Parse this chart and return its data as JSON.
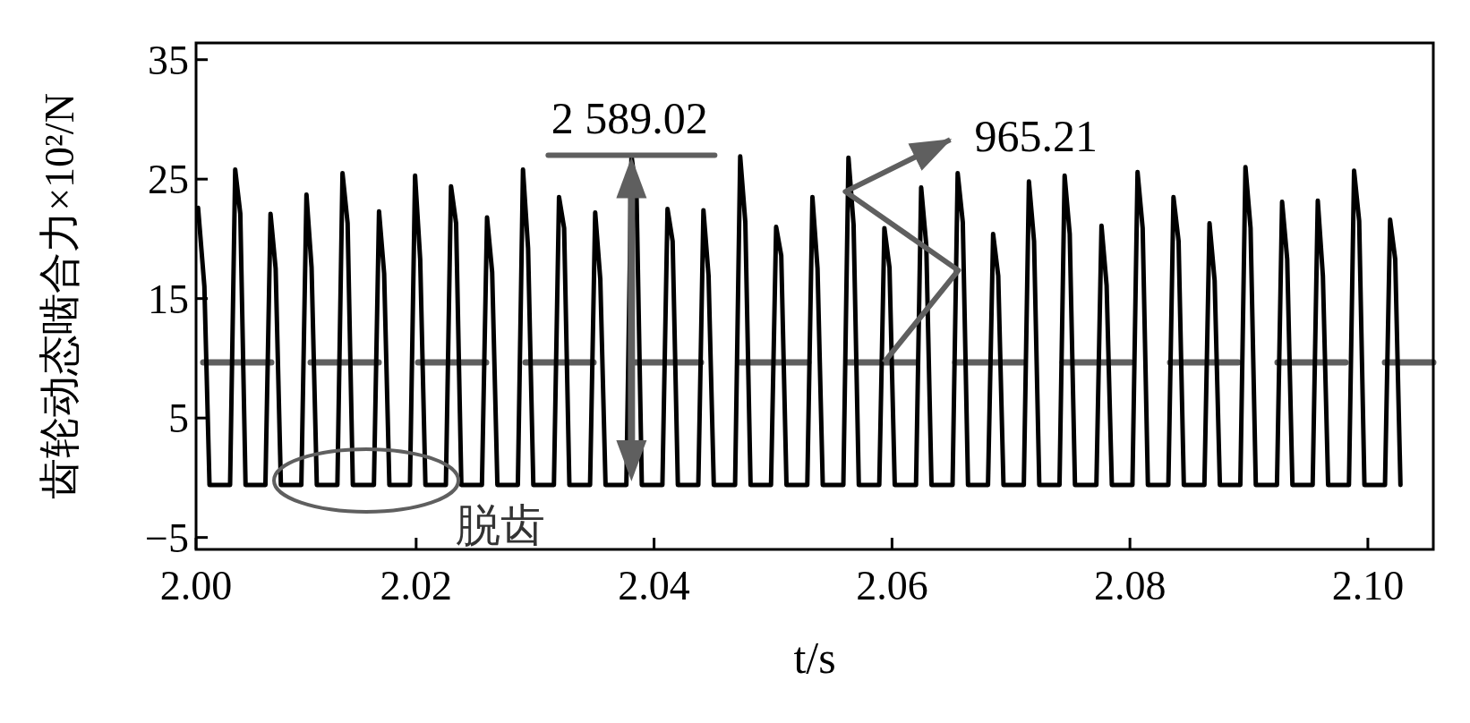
{
  "chart_data": {
    "type": "line",
    "xlabel": "t/s",
    "ylabel": "齿轮动态啮合力×10²/N",
    "xlim": [
      2.0015,
      2.1055
    ],
    "xticks": [
      {
        "value": 2.0015,
        "label": "2.00"
      },
      2.02,
      2.04,
      2.06,
      2.08,
      {
        "value": 2.1,
        "label": "2.10"
      }
    ],
    "ylim": [
      -6,
      36.4
    ],
    "yticks": [
      {
        "value": 35,
        "label": "35"
      },
      {
        "value": 25,
        "label": "25"
      },
      {
        "value": 15,
        "label": "15"
      },
      {
        "value": 5,
        "label": "5"
      },
      {
        "value": -5,
        "label": "−5"
      }
    ],
    "grid": false,
    "marker": "none",
    "line_style": "solid",
    "series": [
      {
        "color": "#000000",
        "x": [
          2.00167,
          2.0022,
          2.00263,
          2.00436,
          2.00479,
          2.00522,
          2.00566,
          2.00733,
          2.00776,
          2.00819,
          2.00863,
          2.01035,
          2.01078,
          2.01121,
          2.01165,
          2.01338,
          2.01381,
          2.01424,
          2.01468,
          2.01645,
          2.01688,
          2.01731,
          2.01775,
          2.01948,
          2.01991,
          2.02034,
          2.02078,
          2.0225,
          2.02293,
          2.02336,
          2.0238,
          2.02553,
          2.02596,
          2.02639,
          2.02683,
          2.02855,
          2.02898,
          2.02941,
          2.02985,
          2.03158,
          2.03201,
          2.03244,
          2.03288,
          2.03462,
          2.03505,
          2.03548,
          2.03592,
          2.03767,
          2.0381,
          2.03853,
          2.03897,
          2.0407,
          2.04113,
          2.04156,
          2.042,
          2.04372,
          2.04415,
          2.04458,
          2.04502,
          2.04681,
          2.04724,
          2.04767,
          2.04811,
          2.04983,
          2.05026,
          2.05069,
          2.05113,
          2.05288,
          2.05331,
          2.05374,
          2.05418,
          2.05591,
          2.05634,
          2.05677,
          2.05721,
          2.05893,
          2.05936,
          2.05979,
          2.06023,
          2.06202,
          2.06245,
          2.06288,
          2.06332,
          2.06509,
          2.06552,
          2.06595,
          2.06639,
          2.06807,
          2.0685,
          2.06893,
          2.06937,
          2.07108,
          2.07151,
          2.07194,
          2.07238,
          2.07408,
          2.07451,
          2.07494,
          2.07538,
          2.07718,
          2.07761,
          2.07804,
          2.07848,
          2.08021,
          2.08064,
          2.08107,
          2.08151,
          2.08323,
          2.08366,
          2.08409,
          2.08453,
          2.08626,
          2.08669,
          2.08712,
          2.08756,
          2.08928,
          2.08971,
          2.09014,
          2.09058,
          2.09236,
          2.09279,
          2.09322,
          2.09366,
          2.09536,
          2.09579,
          2.09622,
          2.09666,
          2.09841,
          2.09884,
          2.09927,
          2.09971,
          2.10144,
          2.10187,
          2.1023,
          2.10274
        ],
        "values": [
          22.6,
          16.0,
          -0.6,
          -0.6,
          25.8,
          22.1,
          -0.6,
          -0.6,
          22.1,
          17.5,
          -0.6,
          -0.6,
          23.7,
          17.6,
          -0.6,
          -0.6,
          25.5,
          21.3,
          -0.6,
          -0.6,
          22.3,
          17.1,
          -0.6,
          -0.6,
          25.3,
          18.3,
          -0.6,
          -0.6,
          24.4,
          21.3,
          -0.6,
          -0.6,
          21.8,
          17.2,
          -0.6,
          -0.6,
          25.8,
          19.2,
          -0.6,
          -0.6,
          23.5,
          20.9,
          -0.6,
          -0.6,
          22.2,
          16.6,
          -0.6,
          -0.6,
          27.0,
          23.5,
          -0.6,
          -0.6,
          22.5,
          19.8,
          -0.6,
          -0.6,
          22.4,
          16.9,
          -0.6,
          -0.6,
          26.9,
          21.4,
          -0.6,
          -0.6,
          21.0,
          18.6,
          -0.6,
          -0.6,
          23.5,
          17.5,
          -0.6,
          -0.6,
          26.8,
          21.2,
          -0.6,
          -0.6,
          20.9,
          17.6,
          -0.6,
          -0.6,
          24.3,
          19.5,
          -0.6,
          -0.6,
          25.5,
          21.4,
          -0.6,
          -0.6,
          20.4,
          16.9,
          -0.6,
          -0.6,
          24.8,
          19.8,
          -0.6,
          -0.6,
          25.3,
          20.4,
          -0.6,
          -0.6,
          21.1,
          16.1,
          -0.6,
          -0.6,
          25.6,
          20.9,
          -0.6,
          -0.6,
          23.5,
          19.8,
          -0.6,
          -0.6,
          21.3,
          16.5,
          -0.6,
          -0.6,
          26.0,
          20.9,
          -0.6,
          -0.6,
          23.1,
          18.3,
          -0.6,
          -0.6,
          23.2,
          16.9,
          -0.6,
          -0.6,
          25.7,
          21.5,
          -0.6,
          -0.6,
          21.6,
          18.3,
          -0.6
        ]
      }
    ],
    "ref_lines": [
      {
        "axis": "y",
        "value": 9.65,
        "color": "#5f5f5f",
        "line_style": "dashed"
      }
    ],
    "annotations": [
      {
        "text": "2 589.02",
        "x": 2.0381,
        "y": 27.0
      },
      {
        "text": "965.21",
        "x": 2.0594,
        "y": 9.65
      },
      {
        "text": "脱齿",
        "x": 2.0158,
        "y": -0.6
      }
    ]
  }
}
